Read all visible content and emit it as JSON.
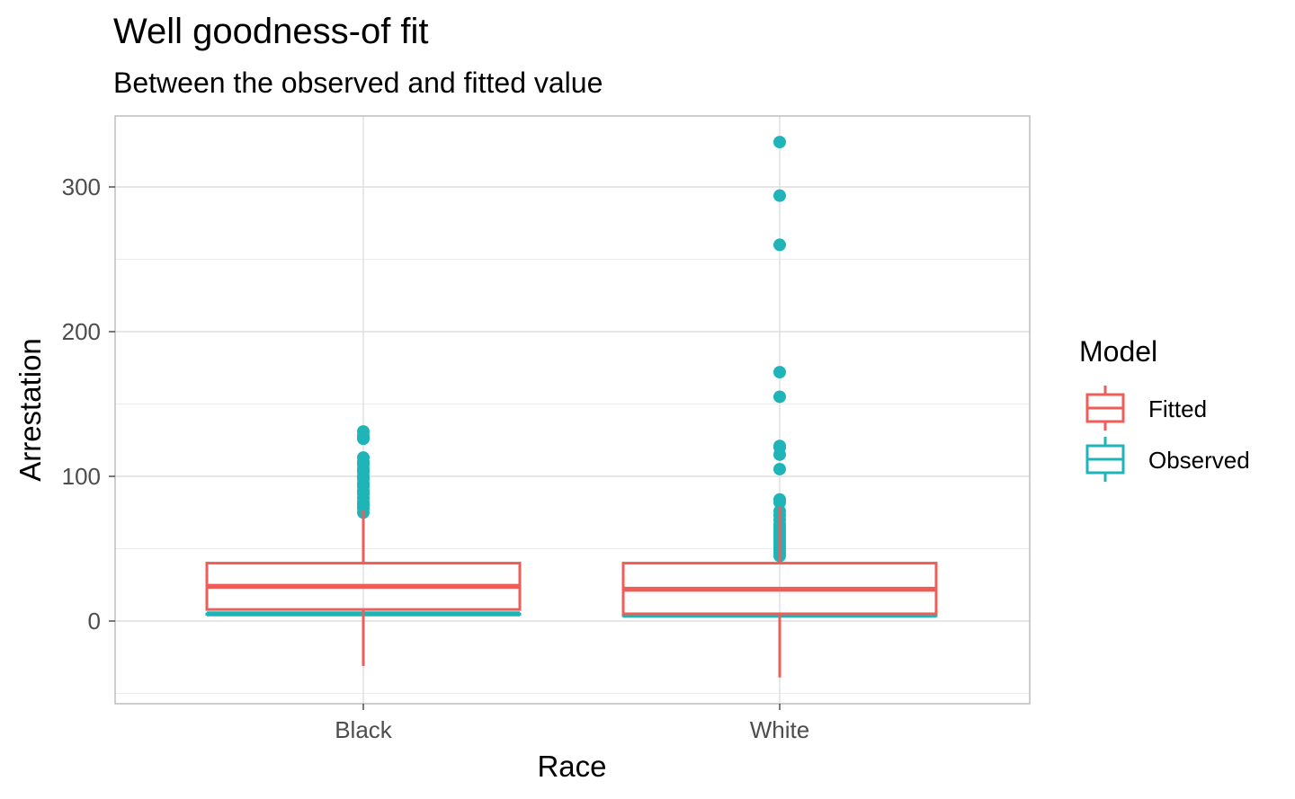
{
  "chart_data": {
    "type": "boxplot",
    "title": "Well goodness-of fit",
    "subtitle": "Between the observed and fitted value",
    "xlabel": "Race",
    "ylabel": "Arrestation",
    "categories": [
      "Black",
      "White"
    ],
    "ylim": [
      -56,
      350
    ],
    "yticks": [
      0,
      100,
      200,
      300
    ],
    "yminor": [
      -50,
      50,
      150,
      250
    ],
    "grid": true,
    "legend": {
      "title": "Model",
      "position": "right",
      "entries": [
        "Fitted",
        "Observed"
      ]
    },
    "series": [
      {
        "name": "Observed",
        "color": "#1fb5b8",
        "boxes": [
          {
            "category": "Black",
            "q1": 5,
            "median": 5,
            "q3": 5,
            "whisker_low": 5,
            "whisker_high": 5,
            "outliers": [
              75,
              78,
              80,
              82,
              85,
              88,
              90,
              93,
              95,
              98,
              100,
              103,
              105,
              108,
              110,
              113,
              126,
              128,
              131
            ]
          },
          {
            "category": "White",
            "q1": 4,
            "median": 4,
            "q3": 4,
            "whisker_low": 4,
            "whisker_high": 4,
            "outliers": [
              45,
              47,
              49,
              51,
              53,
              55,
              57,
              59,
              61,
              63,
              65,
              67,
              70,
              73,
              76,
              82,
              84,
              105,
              115,
              120,
              121,
              155,
              172,
              260,
              294,
              331
            ]
          }
        ]
      },
      {
        "name": "Fitted",
        "color": "#ef5d58",
        "boxes": [
          {
            "category": "Black",
            "q1": 8,
            "median": 24,
            "q3": 40,
            "whisker_low": -31,
            "whisker_high": 77,
            "outliers": []
          },
          {
            "category": "White",
            "q1": 5,
            "median": 22,
            "q3": 40,
            "whisker_low": -39,
            "whisker_high": 79,
            "outliers": []
          }
        ]
      }
    ]
  }
}
